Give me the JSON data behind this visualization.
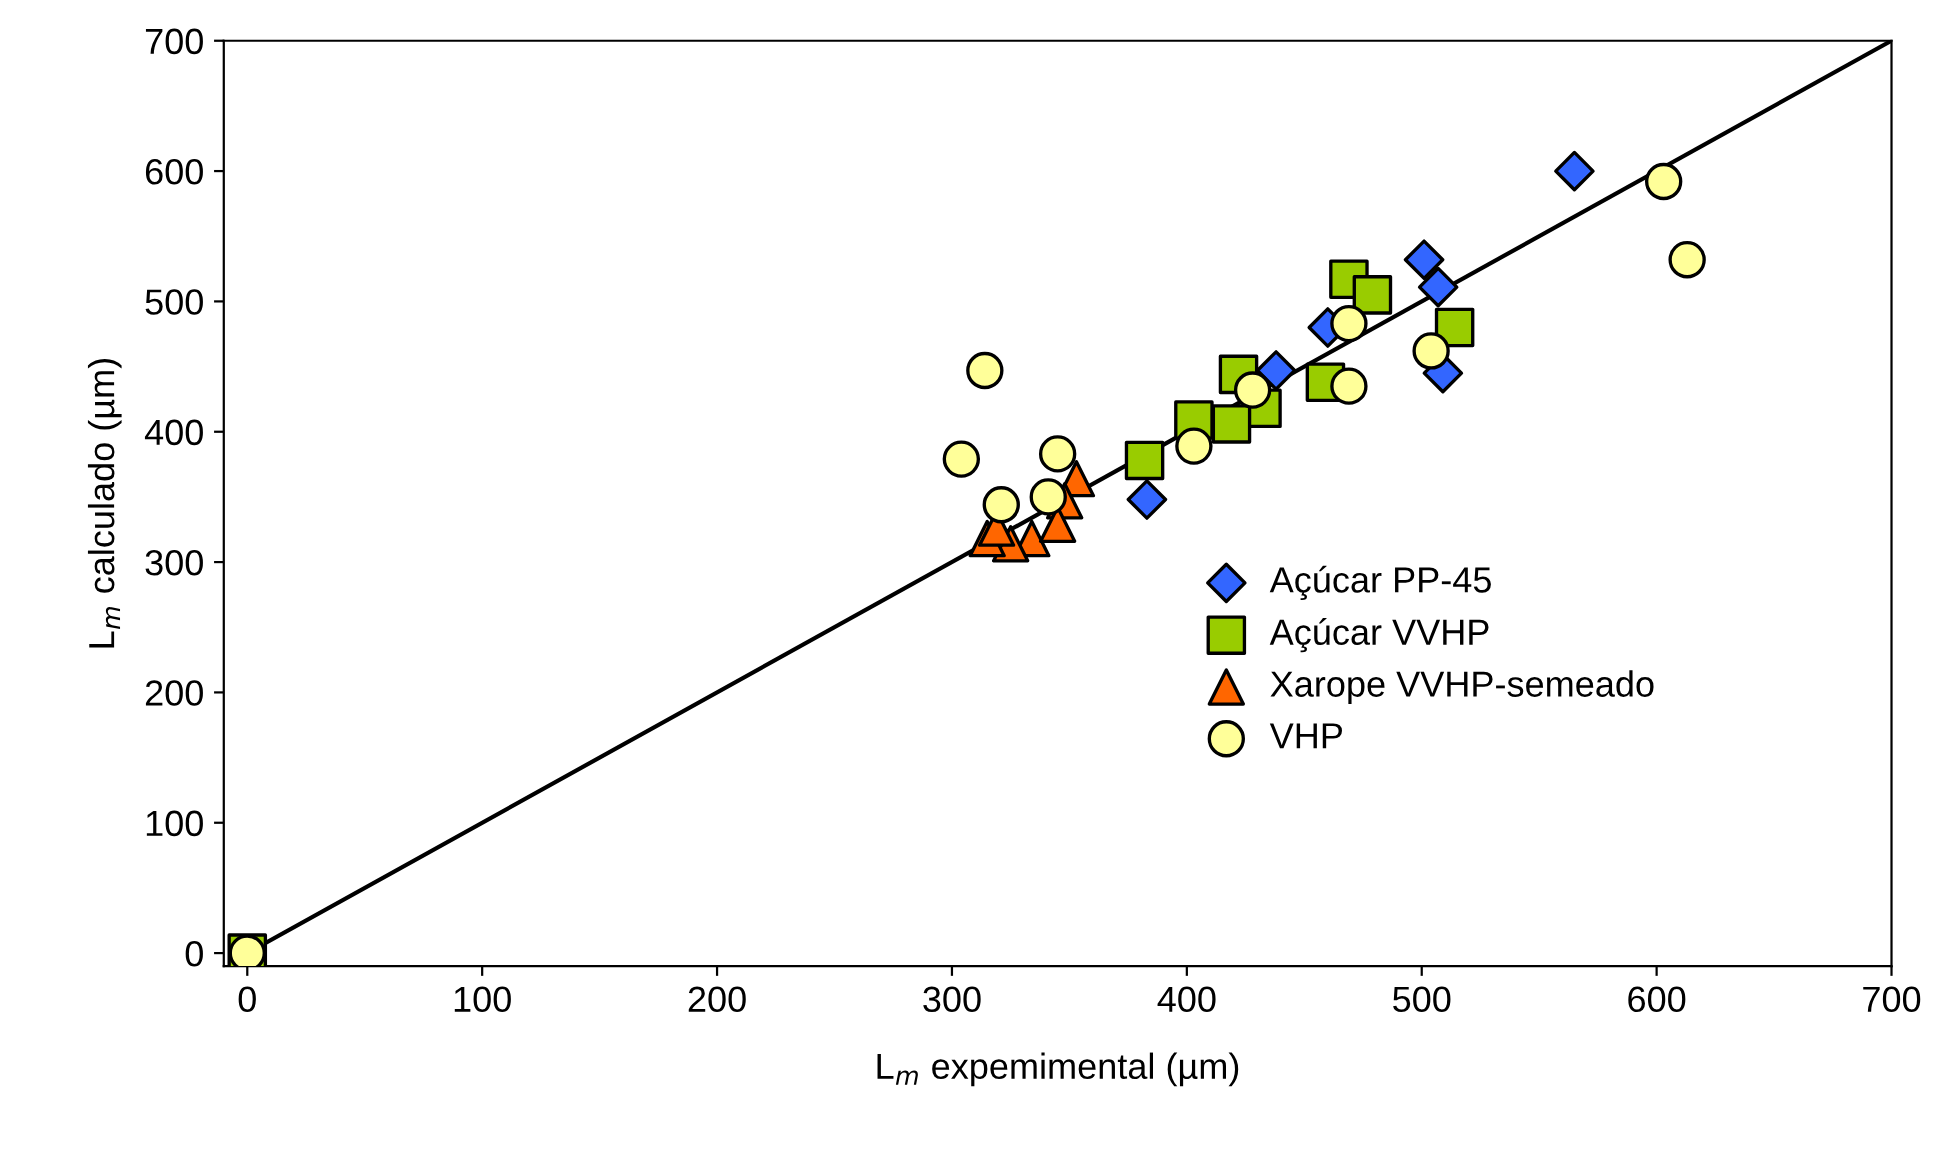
{
  "chart_data": {
    "type": "scatter",
    "xlabel": "L$_{m}$ expemimental (µm)",
    "ylabel": "L$_{m}$ calculado (µm)",
    "xlim": [
      -10,
      700
    ],
    "ylim": [
      -10,
      700
    ],
    "xticks": [
      0,
      100,
      200,
      300,
      400,
      500,
      600,
      700
    ],
    "yticks": [
      0,
      100,
      200,
      300,
      400,
      500,
      600,
      700
    ],
    "grid": false,
    "legend": "right",
    "series": [
      {
        "name": "Açúcar PP-45",
        "color": "#3366ff",
        "marker": "diamond",
        "x": [
          565,
          501,
          507,
          509,
          460,
          438,
          383
        ],
        "values": [
          600,
          532,
          511,
          445,
          480,
          447,
          348
        ]
      },
      {
        "name": "Açúcar VVHP",
        "color": "#99cc00",
        "marker": "square",
        "x": [
          0,
          469,
          479,
          514,
          459,
          422,
          432,
          403,
          419,
          382
        ],
        "values": [
          0,
          517,
          505,
          480,
          438,
          444,
          418,
          409,
          406,
          378
        ]
      },
      {
        "name": "Xarope VVHP-semeado",
        "color": "#ff6600",
        "marker": "triangle",
        "x": [
          353,
          348,
          334,
          325,
          315,
          319,
          345
        ],
        "values": [
          364,
          347,
          318,
          314,
          318,
          326,
          329
        ]
      },
      {
        "name": "VHP",
        "color": "#ffff99",
        "marker": "circle",
        "x": [
          0,
          314,
          304,
          345,
          321,
          341,
          603,
          613,
          469,
          504,
          469,
          428,
          403
        ],
        "values": [
          0,
          447,
          379,
          383,
          344,
          350,
          592,
          532,
          483,
          462,
          435,
          432,
          389
        ]
      },
      {
        "type": "line",
        "color": "#000000",
        "marker": "none",
        "x": [
          0,
          700
        ],
        "values": [
          0,
          700
        ]
      }
    ]
  }
}
